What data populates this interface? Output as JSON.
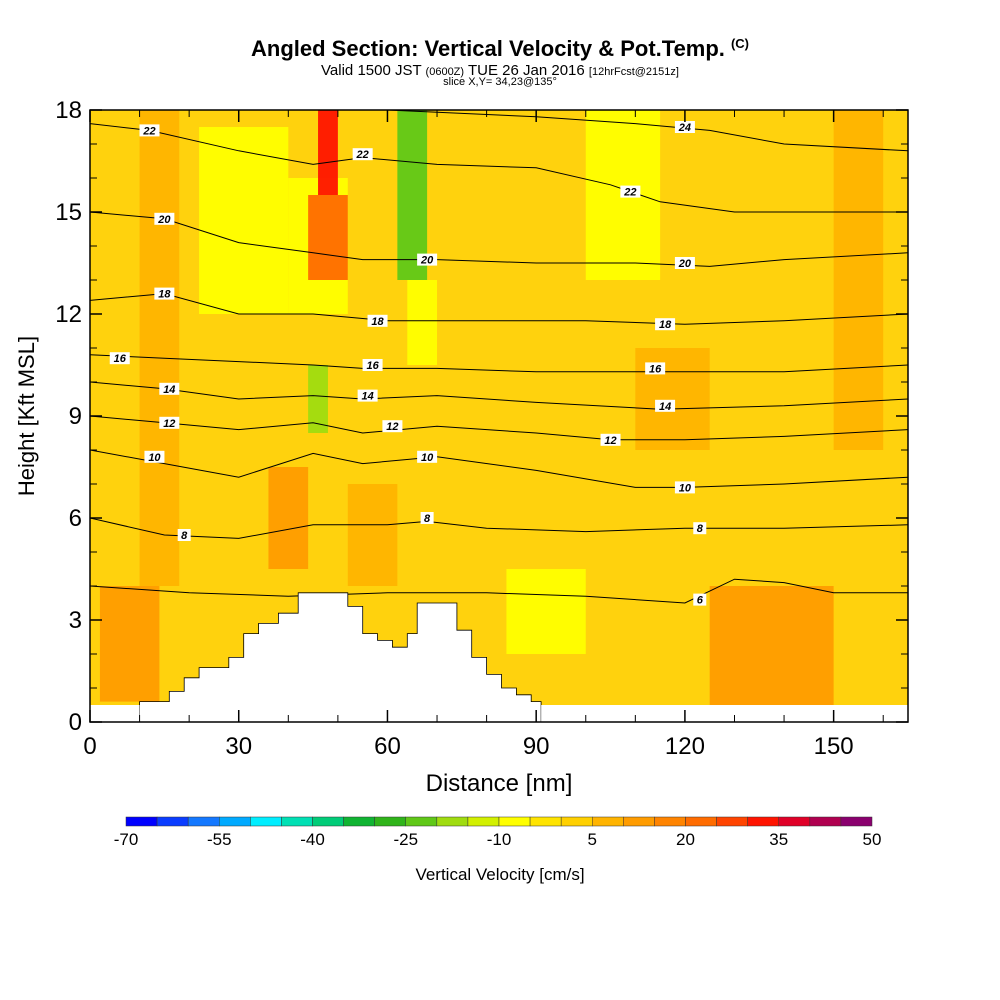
{
  "title": {
    "main": "Angled Section: Vertical Velocity & Pot.Temp.",
    "copyright": "(C)",
    "valid_prefix": "Valid 1500 JST",
    "utc": "(0600Z)",
    "valid_date": "TUE 26 Jan 2016",
    "forecast": "[12hrFcst@2151z]",
    "slice": "slice X,Y= 34,23@135°"
  },
  "chart_data": {
    "type": "heatmap",
    "xlabel": "Distance [nm]",
    "ylabel": "Height [Kft MSL]",
    "xlim": [
      0,
      165
    ],
    "ylim": [
      0,
      18
    ],
    "x_ticks": [
      0,
      30,
      60,
      90,
      120,
      150
    ],
    "y_ticks": [
      0,
      3,
      6,
      9,
      12,
      15,
      18
    ],
    "terrain_profile": [
      [
        10,
        0.6
      ],
      [
        13,
        0.6
      ],
      [
        16,
        0.9
      ],
      [
        19,
        1.3
      ],
      [
        22,
        1.6
      ],
      [
        25,
        1.6
      ],
      [
        28,
        1.9
      ],
      [
        31,
        2.6
      ],
      [
        34,
        2.9
      ],
      [
        38,
        3.2
      ],
      [
        42,
        3.8
      ],
      [
        50,
        3.8
      ],
      [
        52,
        3.4
      ],
      [
        55,
        2.6
      ],
      [
        58,
        2.4
      ],
      [
        61,
        2.2
      ],
      [
        64,
        2.6
      ],
      [
        66,
        3.5
      ],
      [
        72,
        3.5
      ],
      [
        74,
        2.7
      ],
      [
        77,
        1.9
      ],
      [
        80,
        1.4
      ],
      [
        83,
        1.0
      ],
      [
        86,
        0.8
      ],
      [
        89,
        0.6
      ],
      [
        91,
        0.0
      ]
    ],
    "theta_contours": [
      {
        "label": "6",
        "label_at": [
          123,
          3.6
        ],
        "points": [
          [
            0,
            4.0
          ],
          [
            20,
            3.8
          ],
          [
            40,
            3.7
          ],
          [
            60,
            3.8
          ],
          [
            80,
            3.8
          ],
          [
            100,
            3.7
          ],
          [
            120,
            3.5
          ],
          [
            130,
            4.2
          ],
          [
            140,
            4.1
          ],
          [
            150,
            3.8
          ],
          [
            165,
            3.8
          ]
        ]
      },
      {
        "label": "8",
        "label_at": [
          19,
          5.5
        ],
        "points": [
          [
            0,
            6.0
          ],
          [
            15,
            5.5
          ],
          [
            30,
            5.4
          ],
          [
            45,
            5.8
          ],
          [
            60,
            5.8
          ],
          [
            68,
            5.9
          ],
          [
            80,
            5.7
          ],
          [
            100,
            5.6
          ],
          [
            120,
            5.7
          ],
          [
            140,
            5.7
          ],
          [
            165,
            5.8
          ]
        ]
      },
      {
        "label": "8",
        "label_at": [
          68,
          6.0
        ],
        "points": []
      },
      {
        "label": "8",
        "label_at": [
          123,
          5.7
        ],
        "points": []
      },
      {
        "label": "10",
        "label_at": [
          13,
          7.8
        ],
        "points": [
          [
            0,
            8.0
          ],
          [
            15,
            7.6
          ],
          [
            30,
            7.2
          ],
          [
            45,
            7.9
          ],
          [
            55,
            7.6
          ],
          [
            70,
            7.8
          ],
          [
            90,
            7.4
          ],
          [
            110,
            6.9
          ],
          [
            120,
            6.9
          ],
          [
            140,
            7.0
          ],
          [
            165,
            7.2
          ]
        ]
      },
      {
        "label": "10",
        "label_at": [
          68,
          7.8
        ],
        "points": []
      },
      {
        "label": "10",
        "label_at": [
          120,
          6.9
        ],
        "points": []
      },
      {
        "label": "12",
        "label_at": [
          16,
          8.8
        ],
        "points": [
          [
            0,
            9.0
          ],
          [
            15,
            8.8
          ],
          [
            30,
            8.6
          ],
          [
            45,
            8.8
          ],
          [
            55,
            8.5
          ],
          [
            70,
            8.7
          ],
          [
            90,
            8.5
          ],
          [
            105,
            8.3
          ],
          [
            120,
            8.3
          ],
          [
            140,
            8.4
          ],
          [
            165,
            8.6
          ]
        ]
      },
      {
        "label": "12",
        "label_at": [
          61,
          8.7
        ],
        "points": []
      },
      {
        "label": "12",
        "label_at": [
          105,
          8.3
        ],
        "points": []
      },
      {
        "label": "14",
        "label_at": [
          16,
          9.8
        ],
        "points": [
          [
            0,
            10.0
          ],
          [
            15,
            9.8
          ],
          [
            30,
            9.5
          ],
          [
            45,
            9.6
          ],
          [
            55,
            9.5
          ],
          [
            70,
            9.6
          ],
          [
            90,
            9.4
          ],
          [
            115,
            9.2
          ],
          [
            140,
            9.3
          ],
          [
            165,
            9.5
          ]
        ]
      },
      {
        "label": "14",
        "label_at": [
          56,
          9.6
        ],
        "points": []
      },
      {
        "label": "14",
        "label_at": [
          116,
          9.3
        ],
        "points": []
      },
      {
        "label": "16",
        "label_at": [
          6,
          10.7
        ],
        "points": [
          [
            0,
            10.8
          ],
          [
            15,
            10.7
          ],
          [
            30,
            10.6
          ],
          [
            45,
            10.5
          ],
          [
            55,
            10.4
          ],
          [
            70,
            10.4
          ],
          [
            90,
            10.3
          ],
          [
            115,
            10.3
          ],
          [
            140,
            10.3
          ],
          [
            165,
            10.5
          ]
        ]
      },
      {
        "label": "16",
        "label_at": [
          57,
          10.5
        ],
        "points": []
      },
      {
        "label": "16",
        "label_at": [
          114,
          10.4
        ],
        "points": []
      },
      {
        "label": "18",
        "label_at": [
          15,
          12.6
        ],
        "points": [
          [
            0,
            12.4
          ],
          [
            15,
            12.6
          ],
          [
            30,
            12.0
          ],
          [
            45,
            12.0
          ],
          [
            60,
            11.8
          ],
          [
            80,
            11.8
          ],
          [
            100,
            11.8
          ],
          [
            120,
            11.7
          ],
          [
            140,
            11.8
          ],
          [
            165,
            12.0
          ]
        ]
      },
      {
        "label": "18",
        "label_at": [
          58,
          11.8
        ],
        "points": []
      },
      {
        "label": "18",
        "label_at": [
          116,
          11.7
        ],
        "points": []
      },
      {
        "label": "20",
        "label_at": [
          15,
          14.8
        ],
        "points": [
          [
            0,
            15.0
          ],
          [
            15,
            14.8
          ],
          [
            30,
            14.1
          ],
          [
            45,
            13.8
          ],
          [
            55,
            13.6
          ],
          [
            70,
            13.6
          ],
          [
            90,
            13.5
          ],
          [
            110,
            13.5
          ],
          [
            125,
            13.4
          ],
          [
            140,
            13.6
          ],
          [
            165,
            13.8
          ]
        ]
      },
      {
        "label": "20",
        "label_at": [
          68,
          13.6
        ],
        "points": []
      },
      {
        "label": "20",
        "label_at": [
          120,
          13.5
        ],
        "points": []
      },
      {
        "label": "22",
        "label_at": [
          12,
          17.4
        ],
        "points": [
          [
            0,
            17.6
          ],
          [
            12,
            17.4
          ],
          [
            30,
            16.8
          ],
          [
            45,
            16.4
          ],
          [
            55,
            16.6
          ],
          [
            70,
            16.4
          ],
          [
            90,
            16.3
          ],
          [
            105,
            15.8
          ],
          [
            115,
            15.3
          ],
          [
            130,
            15.0
          ],
          [
            165,
            15.0
          ]
        ]
      },
      {
        "label": "22",
        "label_at": [
          55,
          16.7
        ],
        "points": []
      },
      {
        "label": "22",
        "label_at": [
          109,
          15.6
        ],
        "points": []
      },
      {
        "label": "24",
        "label_at": [
          120,
          17.5
        ],
        "points": [
          [
            60,
            18.0
          ],
          [
            90,
            17.8
          ],
          [
            110,
            17.6
          ],
          [
            125,
            17.4
          ],
          [
            140,
            17.0
          ],
          [
            165,
            16.8
          ]
        ]
      }
    ],
    "colorbar": {
      "label": "Vertical Velocity [cm/s]",
      "tick_labels": [
        "-70",
        "-55",
        "-40",
        "-25",
        "-10",
        "5",
        "20",
        "35",
        "50"
      ],
      "min": -70,
      "max": 50,
      "step": 5,
      "colors": [
        "#0000ff",
        "#0a3cff",
        "#1478ff",
        "#00aaff",
        "#00eeff",
        "#00e0b4",
        "#00cc78",
        "#10b432",
        "#30b41a",
        "#60c818",
        "#a0dc10",
        "#d2f000",
        "#ffff00",
        "#ffe400",
        "#ffd000",
        "#ffb400",
        "#ff9c00",
        "#ff8400",
        "#ff6c00",
        "#ff4400",
        "#ff1400",
        "#e00028",
        "#b00050",
        "#8a006e",
        "#6e008a"
      ]
    },
    "velocity_features": [
      {
        "x0": 0,
        "x1": 165,
        "y0": 0,
        "y1": 18,
        "value": 2
      },
      {
        "x0": 2,
        "x1": 14,
        "y0": 0.6,
        "y1": 4.0,
        "value": 12
      },
      {
        "x0": 10,
        "x1": 18,
        "y0": 4,
        "y1": 18,
        "value": 8
      },
      {
        "x0": 22,
        "x1": 40,
        "y0": 12,
        "y1": 17.5,
        "value": -8
      },
      {
        "x0": 40,
        "x1": 52,
        "y0": 12,
        "y1": 16,
        "value": -8
      },
      {
        "x0": 46,
        "x1": 50,
        "y0": 15.5,
        "y1": 18,
        "value": 30
      },
      {
        "x0": 44,
        "x1": 52,
        "y0": 13,
        "y1": 15.5,
        "value": 20
      },
      {
        "x0": 44,
        "x1": 48,
        "y0": 8.5,
        "y1": 10.5,
        "value": -20
      },
      {
        "x0": 62,
        "x1": 68,
        "y0": 13,
        "y1": 18,
        "value": -25
      },
      {
        "x0": 64,
        "x1": 70,
        "y0": 10.5,
        "y1": 13,
        "value": -10
      },
      {
        "x0": 36,
        "x1": 44,
        "y0": 4.5,
        "y1": 7.5,
        "value": 12
      },
      {
        "x0": 52,
        "x1": 62,
        "y0": 4,
        "y1": 7,
        "value": 8
      },
      {
        "x0": 100,
        "x1": 115,
        "y0": 13,
        "y1": 18,
        "value": -8
      },
      {
        "x0": 125,
        "x1": 150,
        "y0": 0.5,
        "y1": 4,
        "value": 12
      },
      {
        "x0": 150,
        "x1": 160,
        "y0": 8,
        "y1": 18,
        "value": 8
      },
      {
        "x0": 84,
        "x1": 100,
        "y0": 2,
        "y1": 4.5,
        "value": -10
      },
      {
        "x0": 110,
        "x1": 125,
        "y0": 8,
        "y1": 11,
        "value": 8
      }
    ]
  }
}
